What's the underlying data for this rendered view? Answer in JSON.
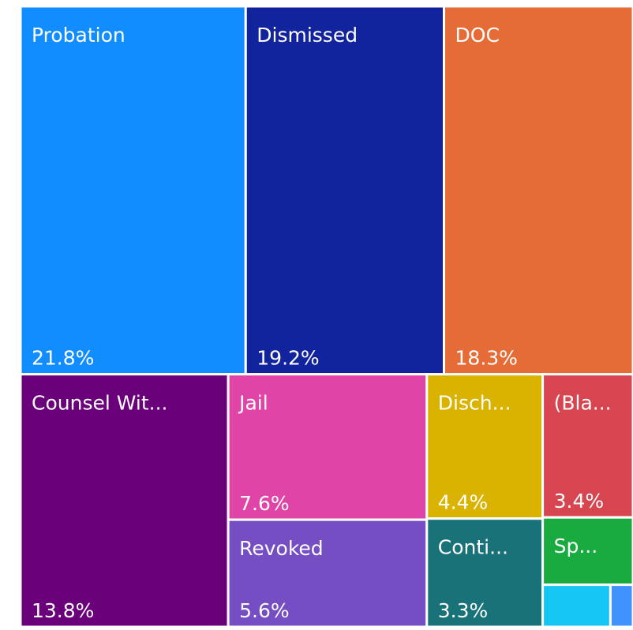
{
  "chart_data": {
    "type": "treemap",
    "categories": [
      "Probation",
      "Dismissed",
      "DOC",
      "Counsel Wit...",
      "Jail",
      "Revoked",
      "Disch...",
      "(Bla...",
      "Conti...",
      "Sp...",
      null,
      null
    ],
    "values": [
      21.8,
      19.2,
      18.3,
      13.8,
      7.6,
      5.6,
      4.4,
      3.4,
      3.3,
      1.6,
      0.75,
      0.25
    ],
    "value_labels": [
      "21.8%",
      "19.2%",
      "18.3%",
      "13.8%",
      "7.6%",
      "5.6%",
      "4.4%",
      "3.4%",
      "3.3%",
      null,
      null,
      null
    ],
    "colors": [
      "#118DFF",
      "#12239E",
      "#E66C37",
      "#6B007B",
      "#E044A7",
      "#744EC2",
      "#D9B300",
      "#D64550",
      "#197278",
      "#1AAB40",
      "#15C6F4",
      "#4092FF"
    ]
  }
}
